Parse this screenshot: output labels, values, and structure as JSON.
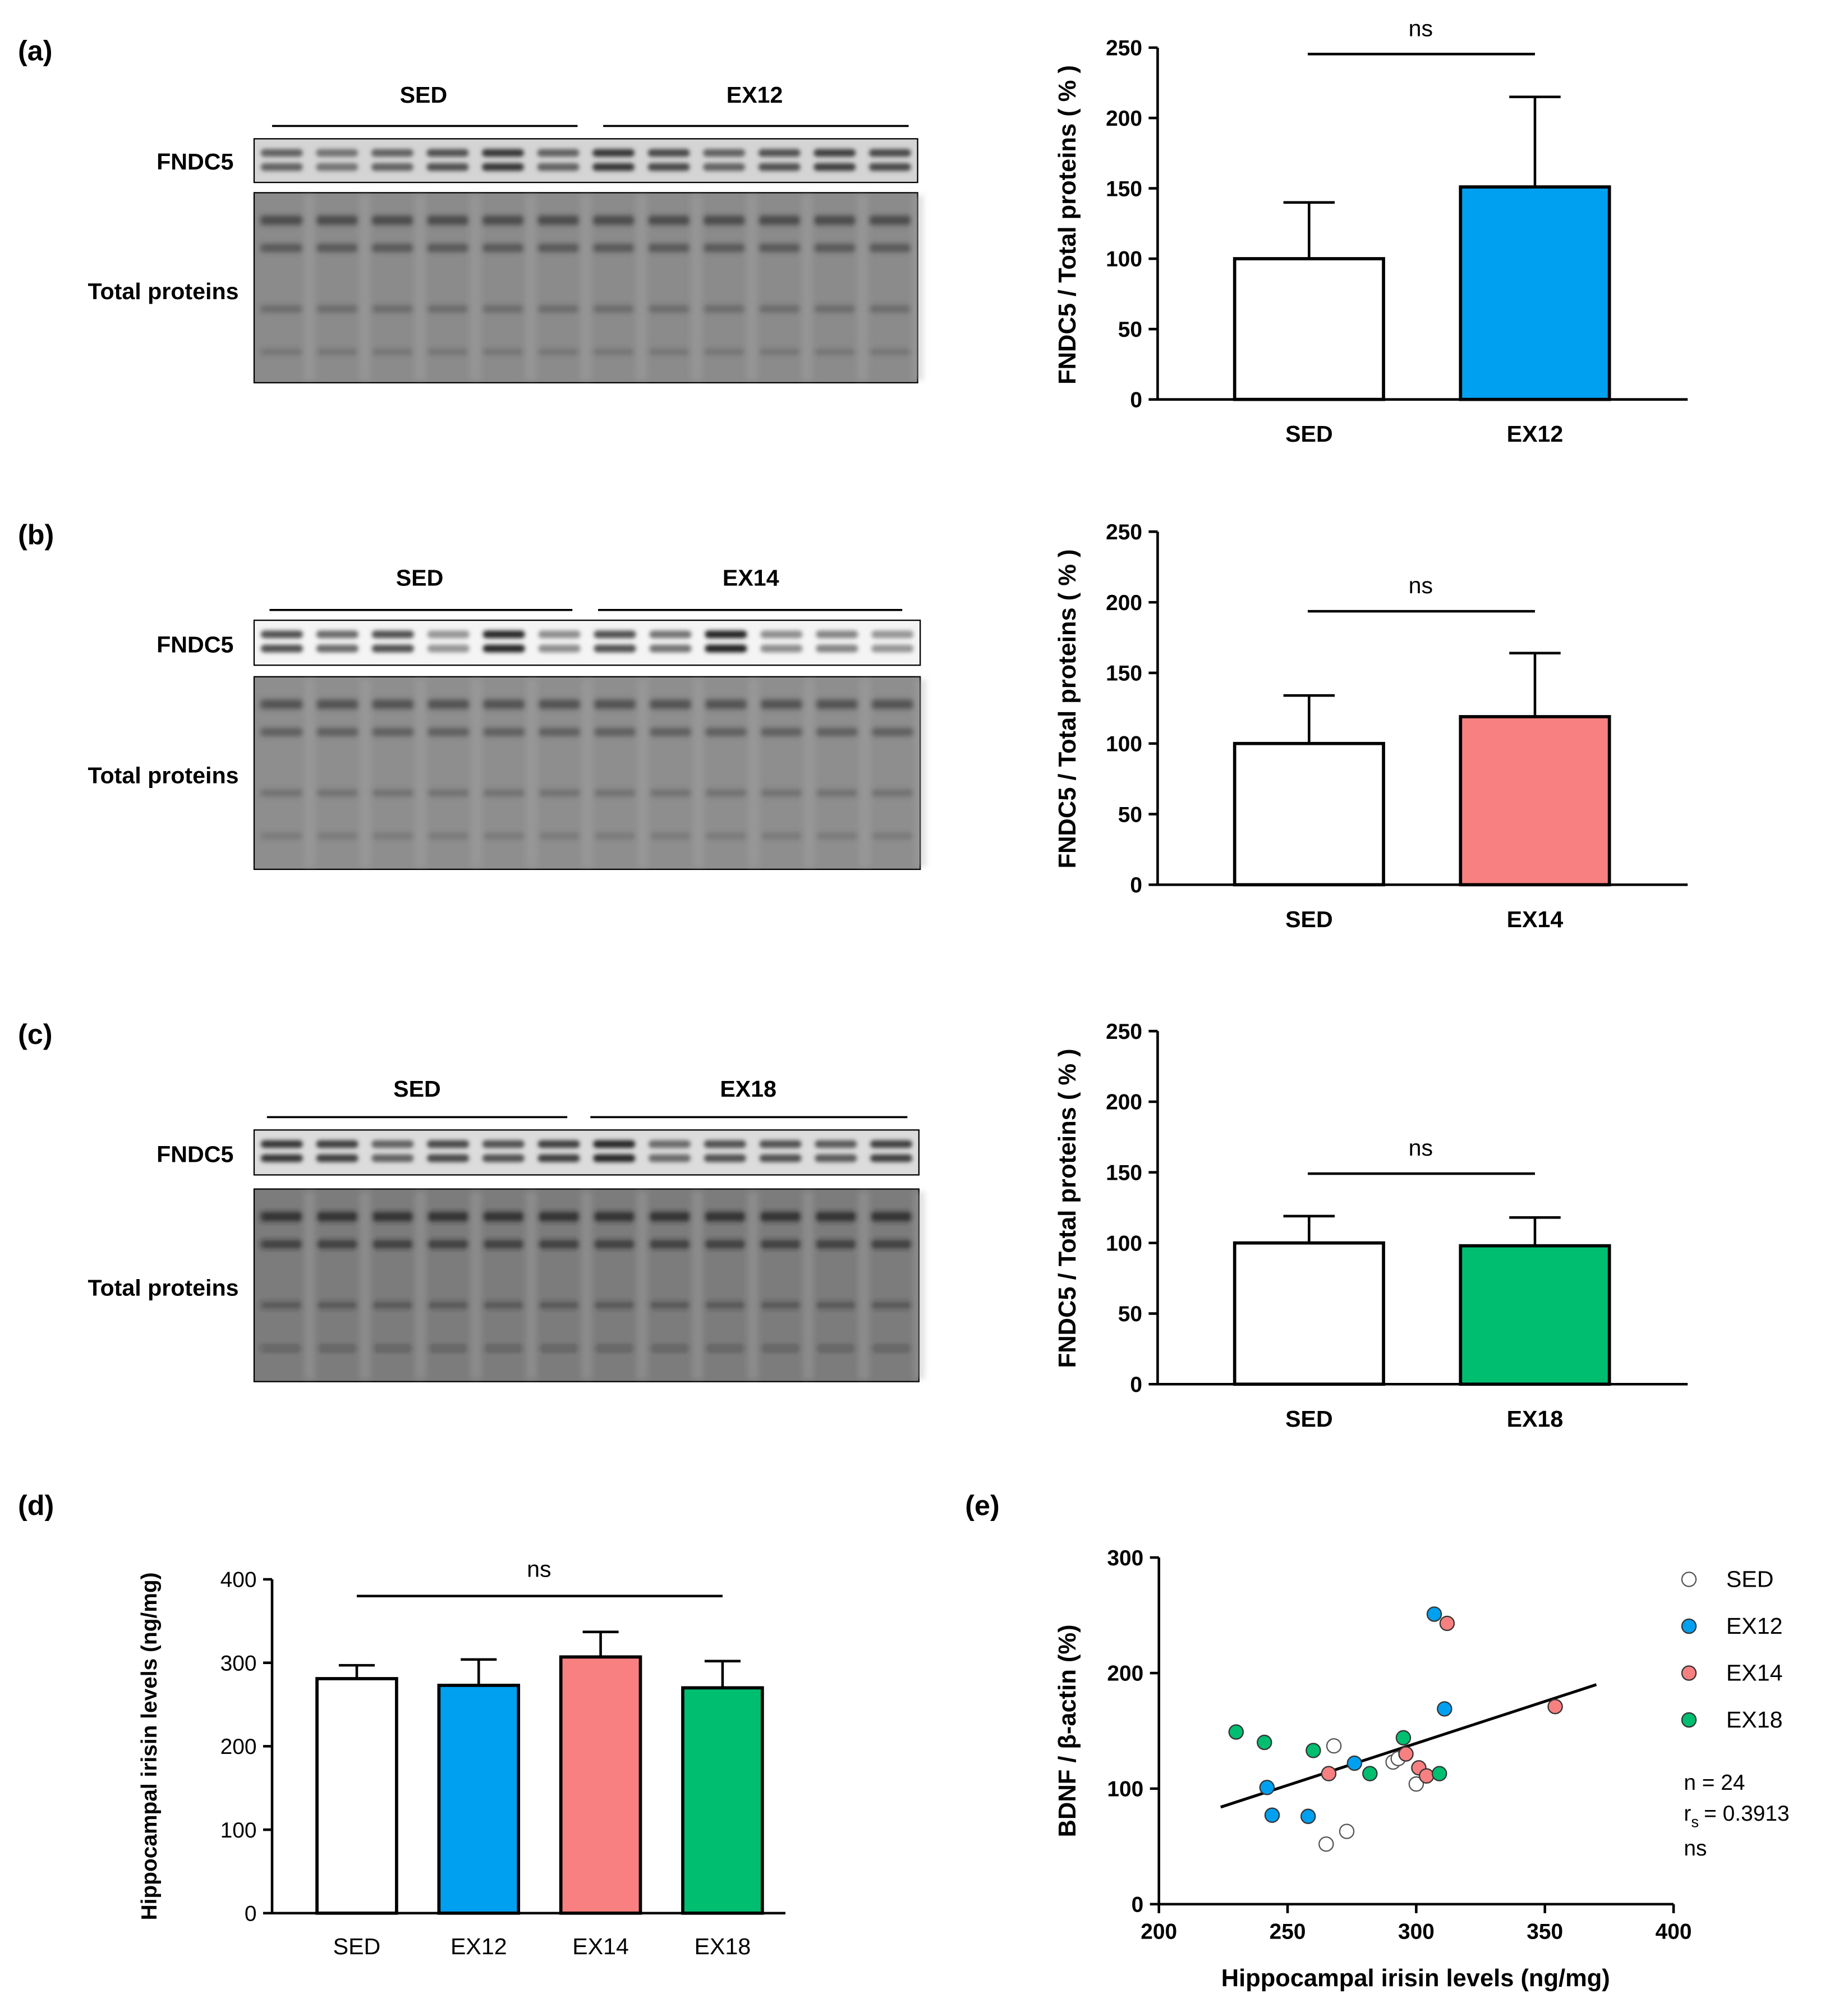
{
  "figure": {
    "panel_labels": [
      "(a)",
      "(b)",
      "(c)",
      "(d)",
      "(e)"
    ]
  },
  "blots": [
    {
      "group_left": "SED",
      "group_right": "EX12",
      "band_label": "FNDC5",
      "total_label": "Total proteins"
    },
    {
      "group_left": "SED",
      "group_right": "EX14",
      "band_label": "FNDC5",
      "total_label": "Total proteins"
    },
    {
      "group_left": "SED",
      "group_right": "EX18",
      "band_label": "FNDC5",
      "total_label": "Total proteins"
    }
  ],
  "colors": {
    "SED": "#ffffff",
    "EX12": "#00a0f0",
    "EX14": "#f88080",
    "EX18": "#00be70",
    "axis": "#000000"
  },
  "chart_data": [
    {
      "panel": "(a)",
      "type": "bar",
      "categories": [
        "SED",
        "EX12"
      ],
      "values": [
        100,
        151
      ],
      "errors": [
        40,
        64
      ],
      "ylabel": "FNDC5 / Total proteins ( % )",
      "ylim": [
        0,
        250
      ],
      "yticks": [
        0,
        50,
        100,
        150,
        200,
        250
      ],
      "significance": "ns"
    },
    {
      "panel": "(b)",
      "type": "bar",
      "categories": [
        "SED",
        "EX14"
      ],
      "values": [
        100,
        119
      ],
      "errors": [
        34,
        45
      ],
      "ylabel": "FNDC5 / Total proteins ( % )",
      "ylim": [
        0,
        250
      ],
      "yticks": [
        0,
        50,
        100,
        150,
        200,
        250
      ],
      "significance": "ns"
    },
    {
      "panel": "(c)",
      "type": "bar",
      "categories": [
        "SED",
        "EX18"
      ],
      "values": [
        100,
        98
      ],
      "errors": [
        19,
        20
      ],
      "ylabel": "FNDC5 / Total proteins ( % )",
      "ylim": [
        0,
        250
      ],
      "yticks": [
        0,
        50,
        100,
        150,
        200,
        250
      ],
      "significance": "ns"
    },
    {
      "panel": "(d)",
      "type": "bar",
      "categories": [
        "SED",
        "EX12",
        "EX14",
        "EX18"
      ],
      "values": [
        281,
        273,
        307,
        270
      ],
      "errors": [
        16,
        31,
        30,
        32
      ],
      "ylabel": "Hippocampal irisin levels (ng/mg)",
      "ylim": [
        0,
        400
      ],
      "yticks": [
        0,
        100,
        200,
        300,
        400
      ],
      "significance": "ns"
    },
    {
      "panel": "(e)",
      "type": "scatter",
      "xlabel": "Hippocampal irisin levels (ng/mg)",
      "ylabel": "BDNF / β-actin (%)",
      "xlim": [
        200,
        400
      ],
      "ylim": [
        0,
        300
      ],
      "xticks": [
        200,
        250,
        300,
        350,
        400
      ],
      "yticks": [
        0,
        100,
        200,
        300
      ],
      "legend_position": "right",
      "series": [
        {
          "name": "SED",
          "points": [
            [
              268,
              137
            ],
            [
              291,
              123
            ],
            [
              293,
              126
            ],
            [
              300,
              104
            ],
            [
              273,
              63
            ],
            [
              265,
              52
            ]
          ]
        },
        {
          "name": "EX12",
          "points": [
            [
              307,
              251
            ],
            [
              311,
              169
            ],
            [
              242,
              101
            ],
            [
              276,
              122
            ],
            [
              244,
              77
            ],
            [
              258,
              76
            ]
          ]
        },
        {
          "name": "EX14",
          "points": [
            [
              312,
              243
            ],
            [
              354,
              171
            ],
            [
              296,
              130
            ],
            [
              301,
              118
            ],
            [
              304,
              111
            ],
            [
              266,
              113
            ]
          ]
        },
        {
          "name": "EX18",
          "points": [
            [
              230,
              149
            ],
            [
              241,
              140
            ],
            [
              260,
              133
            ],
            [
              295,
              144
            ],
            [
              282,
              113
            ],
            [
              309,
              113
            ]
          ]
        }
      ],
      "fit_line": {
        "x": [
          224,
          370
        ],
        "y": [
          84,
          190
        ]
      },
      "stats": {
        "n": "n = 24",
        "rs": "= 0.3913",
        "rs_symbol": "r",
        "rs_sub": "s",
        "sig": "ns"
      }
    }
  ]
}
